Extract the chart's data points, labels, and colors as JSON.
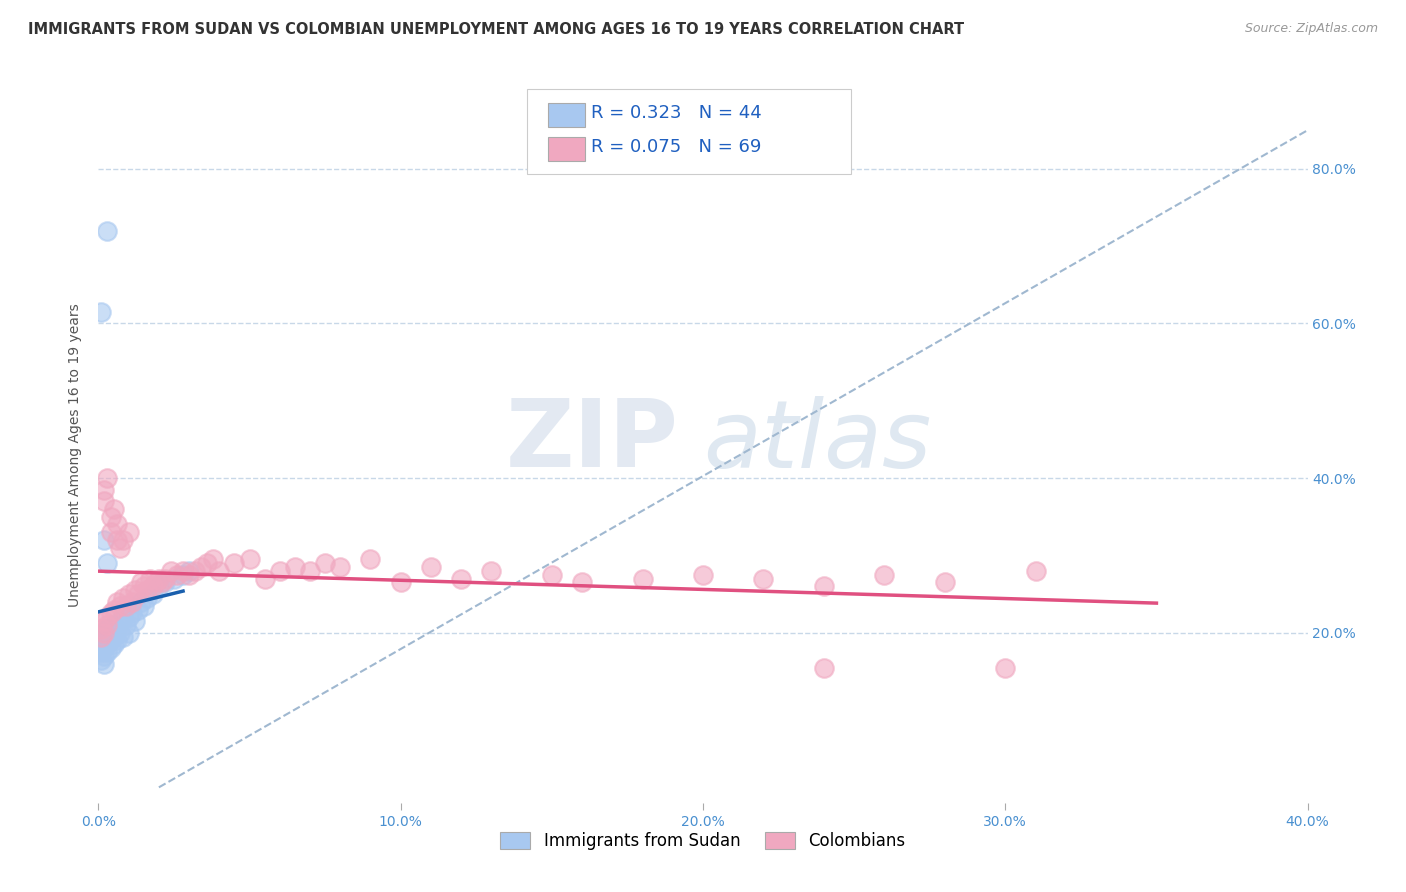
{
  "title": "IMMIGRANTS FROM SUDAN VS COLOMBIAN UNEMPLOYMENT AMONG AGES 16 TO 19 YEARS CORRELATION CHART",
  "source": "Source: ZipAtlas.com",
  "ylabel": "Unemployment Among Ages 16 to 19 years",
  "xlim": [
    0.0,
    0.4
  ],
  "ylim": [
    -0.02,
    0.88
  ],
  "xtick_labels": [
    "0.0%",
    "",
    "10.0%",
    "",
    "20.0%",
    "",
    "30.0%",
    "",
    "40.0%"
  ],
  "xtick_values": [
    0.0,
    0.05,
    0.1,
    0.15,
    0.2,
    0.25,
    0.3,
    0.35,
    0.4
  ],
  "xtick_display": [
    "0.0%",
    "10.0%",
    "20.0%",
    "30.0%",
    "40.0%"
  ],
  "xtick_display_vals": [
    0.0,
    0.1,
    0.2,
    0.3,
    0.4
  ],
  "ytick_labels": [
    "20.0%",
    "40.0%",
    "60.0%",
    "80.0%"
  ],
  "ytick_values": [
    0.2,
    0.4,
    0.6,
    0.8
  ],
  "r_sudan": 0.323,
  "n_sudan": 44,
  "r_colombian": 0.075,
  "n_colombian": 69,
  "sudan_color": "#a8c8f0",
  "colombian_color": "#f0a8c0",
  "sudan_line_color": "#1a5fad",
  "colombian_line_color": "#e05080",
  "trend_line_color": "#a0b8d0",
  "background_color": "#ffffff",
  "grid_color": "#c8d8e8",
  "watermark_zip": "ZIP",
  "watermark_atlas": "atlas",
  "sudan_points": [
    [
      0.001,
      0.195
    ],
    [
      0.001,
      0.185
    ],
    [
      0.001,
      0.175
    ],
    [
      0.001,
      0.165
    ],
    [
      0.002,
      0.2
    ],
    [
      0.002,
      0.19
    ],
    [
      0.002,
      0.18
    ],
    [
      0.002,
      0.17
    ],
    [
      0.002,
      0.16
    ],
    [
      0.003,
      0.205
    ],
    [
      0.003,
      0.195
    ],
    [
      0.003,
      0.185
    ],
    [
      0.003,
      0.175
    ],
    [
      0.003,
      0.72
    ],
    [
      0.004,
      0.2
    ],
    [
      0.004,
      0.19
    ],
    [
      0.004,
      0.18
    ],
    [
      0.005,
      0.21
    ],
    [
      0.005,
      0.195
    ],
    [
      0.005,
      0.185
    ],
    [
      0.006,
      0.205
    ],
    [
      0.006,
      0.19
    ],
    [
      0.007,
      0.215
    ],
    [
      0.007,
      0.2
    ],
    [
      0.008,
      0.22
    ],
    [
      0.008,
      0.195
    ],
    [
      0.009,
      0.21
    ],
    [
      0.01,
      0.22
    ],
    [
      0.01,
      0.2
    ],
    [
      0.011,
      0.225
    ],
    [
      0.012,
      0.215
    ],
    [
      0.013,
      0.23
    ],
    [
      0.014,
      0.24
    ],
    [
      0.015,
      0.235
    ],
    [
      0.016,
      0.245
    ],
    [
      0.018,
      0.25
    ],
    [
      0.02,
      0.26
    ],
    [
      0.022,
      0.265
    ],
    [
      0.025,
      0.27
    ],
    [
      0.028,
      0.275
    ],
    [
      0.001,
      0.615
    ],
    [
      0.03,
      0.28
    ],
    [
      0.002,
      0.32
    ],
    [
      0.003,
      0.29
    ]
  ],
  "colombian_points": [
    [
      0.001,
      0.205
    ],
    [
      0.001,
      0.195
    ],
    [
      0.002,
      0.215
    ],
    [
      0.002,
      0.2
    ],
    [
      0.002,
      0.385
    ],
    [
      0.002,
      0.37
    ],
    [
      0.003,
      0.22
    ],
    [
      0.003,
      0.21
    ],
    [
      0.003,
      0.4
    ],
    [
      0.004,
      0.225
    ],
    [
      0.004,
      0.35
    ],
    [
      0.004,
      0.33
    ],
    [
      0.005,
      0.23
    ],
    [
      0.005,
      0.36
    ],
    [
      0.006,
      0.24
    ],
    [
      0.006,
      0.34
    ],
    [
      0.006,
      0.32
    ],
    [
      0.007,
      0.235
    ],
    [
      0.007,
      0.31
    ],
    [
      0.008,
      0.245
    ],
    [
      0.008,
      0.32
    ],
    [
      0.009,
      0.235
    ],
    [
      0.01,
      0.25
    ],
    [
      0.01,
      0.33
    ],
    [
      0.011,
      0.24
    ],
    [
      0.012,
      0.255
    ],
    [
      0.013,
      0.25
    ],
    [
      0.014,
      0.265
    ],
    [
      0.015,
      0.26
    ],
    [
      0.016,
      0.255
    ],
    [
      0.017,
      0.27
    ],
    [
      0.018,
      0.26
    ],
    [
      0.019,
      0.265
    ],
    [
      0.02,
      0.27
    ],
    [
      0.021,
      0.265
    ],
    [
      0.022,
      0.27
    ],
    [
      0.024,
      0.28
    ],
    [
      0.026,
      0.275
    ],
    [
      0.028,
      0.28
    ],
    [
      0.03,
      0.275
    ],
    [
      0.032,
      0.28
    ],
    [
      0.034,
      0.285
    ],
    [
      0.036,
      0.29
    ],
    [
      0.038,
      0.295
    ],
    [
      0.04,
      0.28
    ],
    [
      0.045,
      0.29
    ],
    [
      0.05,
      0.295
    ],
    [
      0.055,
      0.27
    ],
    [
      0.06,
      0.28
    ],
    [
      0.065,
      0.285
    ],
    [
      0.07,
      0.28
    ],
    [
      0.075,
      0.29
    ],
    [
      0.08,
      0.285
    ],
    [
      0.09,
      0.295
    ],
    [
      0.1,
      0.265
    ],
    [
      0.11,
      0.285
    ],
    [
      0.12,
      0.27
    ],
    [
      0.13,
      0.28
    ],
    [
      0.15,
      0.275
    ],
    [
      0.16,
      0.265
    ],
    [
      0.18,
      0.27
    ],
    [
      0.2,
      0.275
    ],
    [
      0.22,
      0.27
    ],
    [
      0.24,
      0.26
    ],
    [
      0.26,
      0.275
    ],
    [
      0.28,
      0.265
    ],
    [
      0.31,
      0.28
    ],
    [
      0.24,
      0.155
    ],
    [
      0.3,
      0.155
    ]
  ],
  "title_fontsize": 10.5,
  "axis_fontsize": 10,
  "tick_fontsize": 10,
  "legend_fontsize": 12
}
